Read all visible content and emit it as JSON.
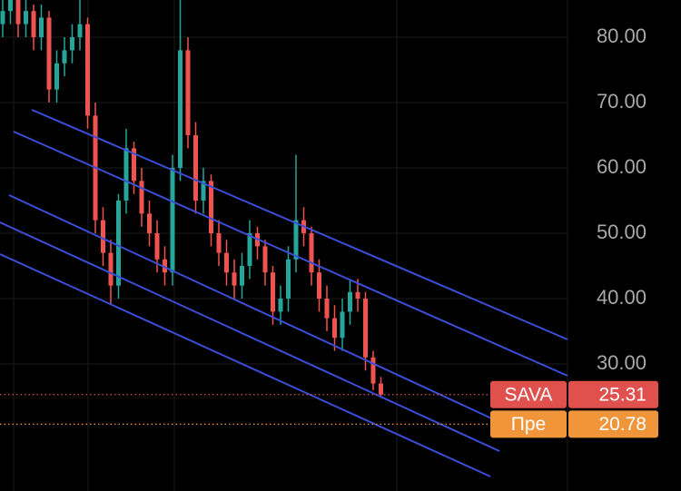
{
  "chart_data": {
    "type": "candlestick",
    "ylim": [
      10.56,
      85.69
    ],
    "yticks": [
      {
        "value": 30,
        "label": "30.00"
      },
      {
        "value": 40,
        "label": "40.00"
      },
      {
        "value": 50,
        "label": "50.00"
      },
      {
        "value": 60,
        "label": "60.00"
      },
      {
        "value": 70,
        "label": "70.00"
      },
      {
        "value": 80,
        "label": "80.00"
      }
    ],
    "grid": true,
    "up_color": "#26a69a",
    "down_color": "#ef5350",
    "open": [
      82,
      84,
      86,
      82,
      84,
      80,
      83,
      72,
      76,
      78,
      80,
      82,
      68,
      52,
      47,
      42,
      55,
      63,
      58,
      53,
      50,
      46,
      44,
      60,
      78,
      65,
      55,
      58,
      50,
      47,
      44,
      42,
      45,
      50,
      48,
      44,
      38,
      40,
      46,
      52,
      50,
      44,
      40,
      37,
      34,
      38,
      41,
      40,
      31,
      27
    ],
    "high": [
      86,
      88,
      87,
      86,
      85,
      85,
      84,
      78,
      80,
      82,
      86,
      83,
      70,
      54,
      49,
      56,
      66,
      64,
      60,
      55,
      52,
      48,
      62,
      86,
      80,
      67,
      60,
      59,
      52,
      49,
      46,
      47,
      52,
      51,
      49,
      45,
      42,
      48,
      62,
      54,
      51,
      46,
      42,
      39,
      40,
      43,
      43,
      41,
      32,
      28
    ],
    "low": [
      80,
      82,
      80,
      80,
      78,
      78,
      70,
      70,
      74,
      76,
      78,
      66,
      50,
      45,
      39,
      40,
      53,
      56,
      51,
      48,
      44,
      42,
      42,
      58,
      63,
      53,
      53,
      48,
      45,
      42,
      40,
      40,
      43,
      46,
      42,
      36,
      36,
      38,
      44,
      48,
      42,
      38,
      35,
      32,
      32,
      36,
      38,
      29,
      26,
      24.8
    ],
    "close": [
      84,
      86,
      82,
      84,
      80,
      83,
      72,
      76,
      78,
      80,
      82,
      68,
      52,
      47,
      42,
      55,
      63,
      58,
      53,
      50,
      46,
      44,
      60,
      78,
      65,
      55,
      58,
      50,
      47,
      44,
      42,
      45,
      50,
      48,
      44,
      38,
      40,
      46,
      52,
      50,
      44,
      40,
      37,
      34,
      38,
      41,
      40,
      31,
      27,
      25.31
    ],
    "price_labels": [
      {
        "name": "SAVA",
        "value": 25.31,
        "color": "#e0504d",
        "line_color": "#d9534f"
      },
      {
        "name": "Пре",
        "value": 20.78,
        "color": "#f0953a",
        "line_color": "#f0953a"
      }
    ]
  }
}
